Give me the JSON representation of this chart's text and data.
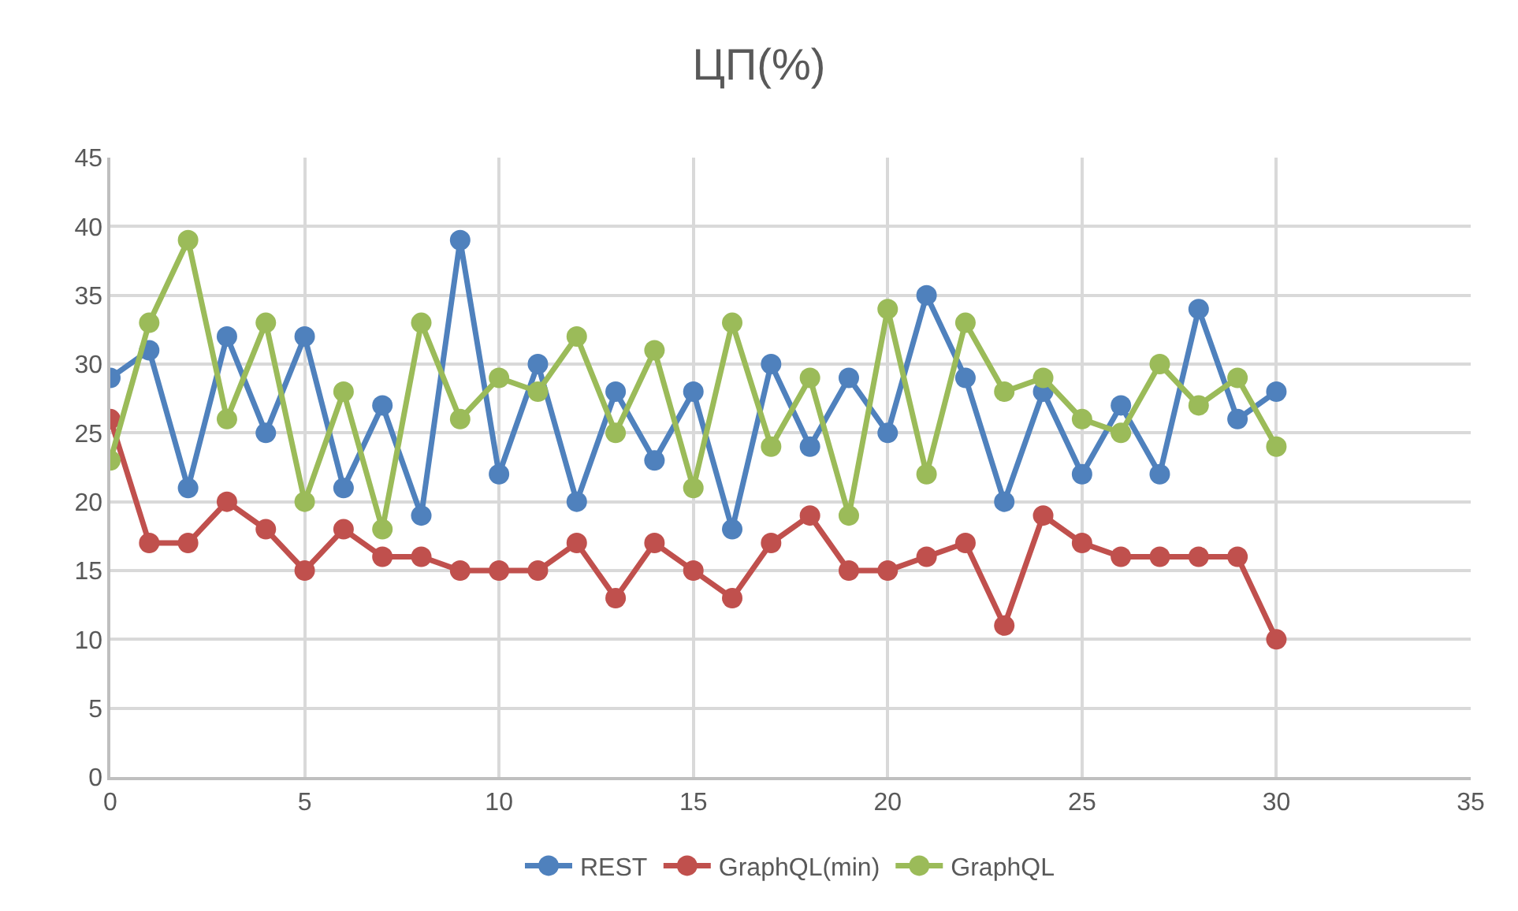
{
  "chart_data": {
    "type": "line",
    "title": "ЦП(%)",
    "x": [
      0,
      1,
      2,
      3,
      4,
      5,
      6,
      7,
      8,
      9,
      10,
      11,
      12,
      13,
      14,
      15,
      16,
      17,
      18,
      19,
      20,
      21,
      22,
      23,
      24,
      25,
      26,
      27,
      28,
      29,
      30
    ],
    "series": [
      {
        "name": "REST",
        "color": "#4f81bd",
        "values": [
          29,
          31,
          21,
          32,
          25,
          32,
          21,
          27,
          19,
          39,
          22,
          30,
          20,
          28,
          23,
          28,
          18,
          30,
          24,
          29,
          25,
          35,
          29,
          20,
          28,
          22,
          27,
          22,
          34,
          26,
          28
        ]
      },
      {
        "name": "GraphQL(min)",
        "color": "#c0504d",
        "values": [
          26,
          17,
          17,
          20,
          18,
          15,
          18,
          16,
          16,
          15,
          15,
          15,
          17,
          13,
          17,
          15,
          13,
          17,
          19,
          15,
          15,
          16,
          17,
          11,
          19,
          17,
          16,
          16,
          16,
          16,
          10
        ]
      },
      {
        "name": "GraphQL",
        "color": "#9bbb59",
        "values": [
          23,
          33,
          39,
          26,
          33,
          20,
          28,
          18,
          33,
          26,
          29,
          28,
          32,
          25,
          31,
          21,
          33,
          24,
          29,
          19,
          34,
          22,
          33,
          28,
          29,
          26,
          25,
          30,
          27,
          29,
          24
        ]
      }
    ],
    "xlim": [
      0,
      35
    ],
    "xticks": [
      0,
      5,
      10,
      15,
      20,
      25,
      30,
      35
    ],
    "ylim": [
      0,
      45
    ],
    "yticks": [
      0,
      5,
      10,
      15,
      20,
      25,
      30,
      35,
      40,
      45
    ],
    "grid": true,
    "legend": "bottom",
    "marker": "circle",
    "line_style": "solid"
  }
}
